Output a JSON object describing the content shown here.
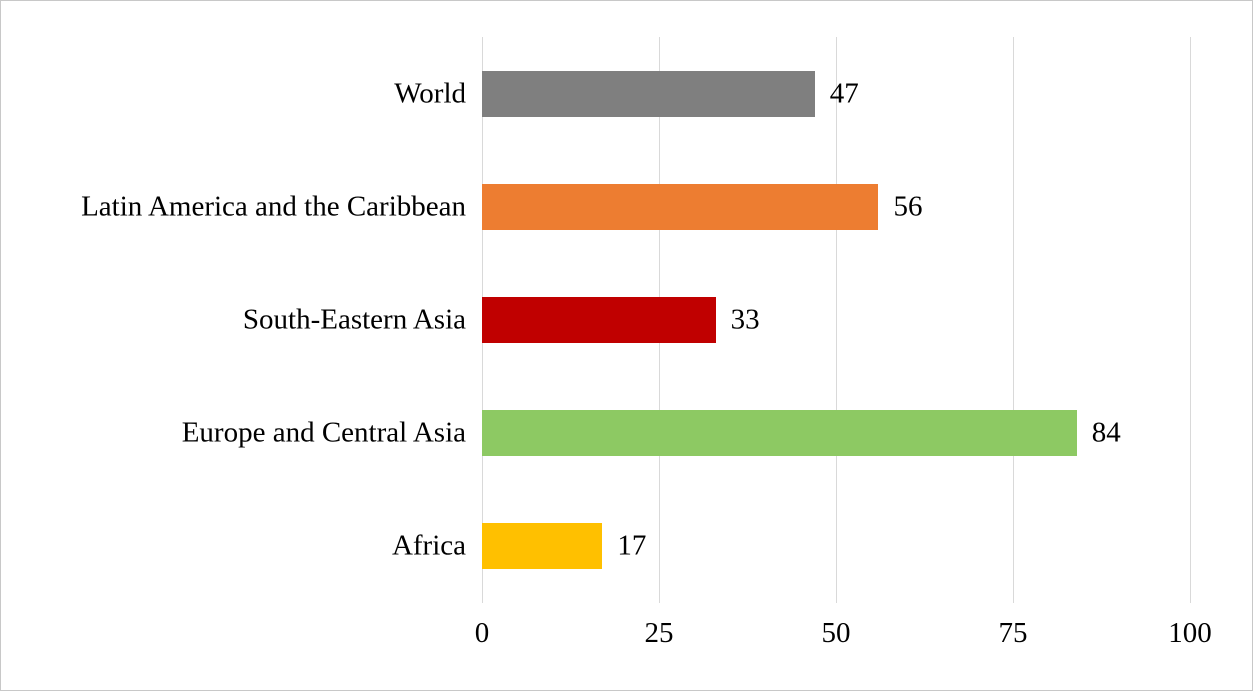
{
  "chart_data": {
    "type": "bar",
    "orientation": "horizontal",
    "title": "",
    "categories": [
      "World",
      "Latin America and the Caribbean",
      "South-Eastern Asia",
      "Europe and Central Asia",
      "Africa"
    ],
    "values": [
      47,
      56,
      33,
      84,
      17
    ],
    "colors": [
      "#7f7f7f",
      "#ed7d31",
      "#c00000",
      "#8dc963",
      "#ffc000"
    ],
    "data_labels": [
      47,
      56,
      33,
      84,
      17
    ],
    "xlim": [
      0,
      100
    ],
    "xticks": [
      0,
      25,
      50,
      75,
      100
    ],
    "gridlines": [
      0,
      25,
      50,
      75,
      100
    ],
    "grid_on": true,
    "legend": "none",
    "xlabel": "",
    "ylabel": "",
    "grid_color": "#d9d9d9",
    "background_color": "#ffffff",
    "border_color": "#c8c8c8",
    "text_color": "#000000"
  }
}
